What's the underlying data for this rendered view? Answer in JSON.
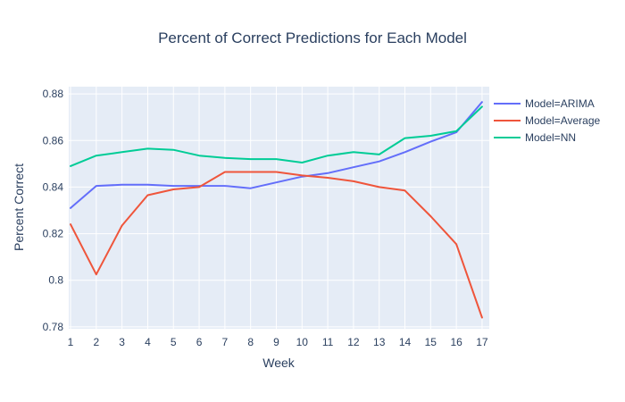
{
  "title": "Percent of Correct Predictions for Each Model",
  "colors": {
    "background": "#ffffff",
    "plot_background": "#e5ecf6",
    "grid": "#ffffff",
    "font": "#2a3f5f",
    "arima": "#636efa",
    "average": "#ef553b",
    "nn": "#00cc96"
  },
  "legend": {
    "items": [
      {
        "label": "Model=ARIMA",
        "color": "#636efa"
      },
      {
        "label": "Model=Average",
        "color": "#ef553b"
      },
      {
        "label": "Model=NN",
        "color": "#00cc96"
      }
    ]
  },
  "chart_data": {
    "type": "line",
    "title": "Percent of Correct Predictions for Each Model",
    "xlabel": "Week",
    "ylabel": "Percent Correct",
    "x": [
      1,
      2,
      3,
      4,
      5,
      6,
      7,
      8,
      9,
      10,
      11,
      12,
      13,
      14,
      15,
      16,
      17
    ],
    "xticks": [
      1,
      2,
      3,
      4,
      5,
      6,
      7,
      8,
      9,
      10,
      11,
      12,
      13,
      14,
      15,
      16,
      17
    ],
    "yticks": [
      0.78,
      0.8,
      0.82,
      0.84,
      0.86,
      0.88
    ],
    "xlim": [
      0.93,
      17.28
    ],
    "ylim": [
      0.7792,
      0.8831
    ],
    "grid": true,
    "legend_position": "right",
    "series": [
      {
        "name": "Model=ARIMA",
        "color": "#636efa",
        "values": [
          0.831,
          0.8405,
          0.841,
          0.841,
          0.8405,
          0.8405,
          0.8405,
          0.8395,
          0.842,
          0.8445,
          0.846,
          0.8485,
          0.851,
          0.855,
          0.8595,
          0.8635,
          0.8765
        ]
      },
      {
        "name": "Model=Average",
        "color": "#ef553b",
        "values": [
          0.824,
          0.8025,
          0.8235,
          0.8365,
          0.839,
          0.84,
          0.8465,
          0.8465,
          0.8465,
          0.845,
          0.844,
          0.8425,
          0.84,
          0.8385,
          0.8275,
          0.8155,
          0.784
        ]
      },
      {
        "name": "Model=NN",
        "color": "#00cc96",
        "values": [
          0.849,
          0.8535,
          0.855,
          0.8565,
          0.856,
          0.8535,
          0.8525,
          0.852,
          0.852,
          0.8505,
          0.8535,
          0.855,
          0.854,
          0.861,
          0.862,
          0.864,
          0.8745
        ]
      }
    ]
  }
}
